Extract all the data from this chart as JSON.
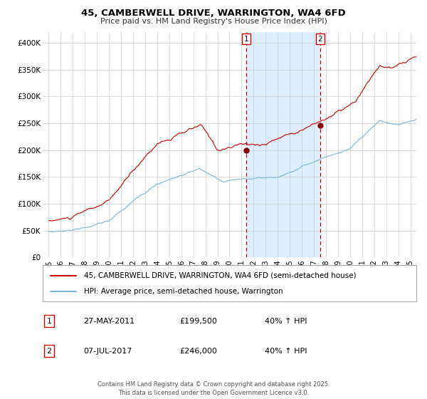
{
  "title": "45, CAMBERWELL DRIVE, WARRINGTON, WA4 6FD",
  "subtitle": "Price paid vs. HM Land Registry's House Price Index (HPI)",
  "legend_line1": "45, CAMBERWELL DRIVE, WARRINGTON, WA4 6FD (semi-detached house)",
  "legend_line2": "HPI: Average price, semi-detached house, Warrington",
  "footnote": "Contains HM Land Registry data © Crown copyright and database right 2025.\nThis data is licensed under the Open Government Licence v3.0.",
  "red_color": "#cc0000",
  "blue_color": "#7ab8d9",
  "shade_color": "#ddeeff",
  "marker_color": "#880000",
  "vline_color": "#cc0000",
  "marker1_x": 2011.41,
  "marker1_y": 199500,
  "marker2_x": 2017.52,
  "marker2_y": 246000,
  "event1_date": "27-MAY-2011",
  "event1_price": "£199,500",
  "event1_hpi": "40% ↑ HPI",
  "event2_date": "07-JUL-2017",
  "event2_price": "£246,000",
  "event2_hpi": "40% ↑ HPI",
  "ylim": [
    0,
    420000
  ],
  "yticks": [
    0,
    50000,
    100000,
    150000,
    200000,
    250000,
    300000,
    350000,
    400000
  ],
  "ytick_labels": [
    "£0",
    "£50K",
    "£100K",
    "£150K",
    "£200K",
    "£250K",
    "£300K",
    "£350K",
    "£400K"
  ],
  "xlim": [
    1994.5,
    2025.5
  ],
  "xtick_years": [
    1995,
    1996,
    1997,
    1998,
    1999,
    2000,
    2001,
    2002,
    2003,
    2004,
    2005,
    2006,
    2007,
    2008,
    2009,
    2010,
    2011,
    2012,
    2013,
    2014,
    2015,
    2016,
    2017,
    2018,
    2019,
    2020,
    2021,
    2022,
    2023,
    2024,
    2025
  ]
}
